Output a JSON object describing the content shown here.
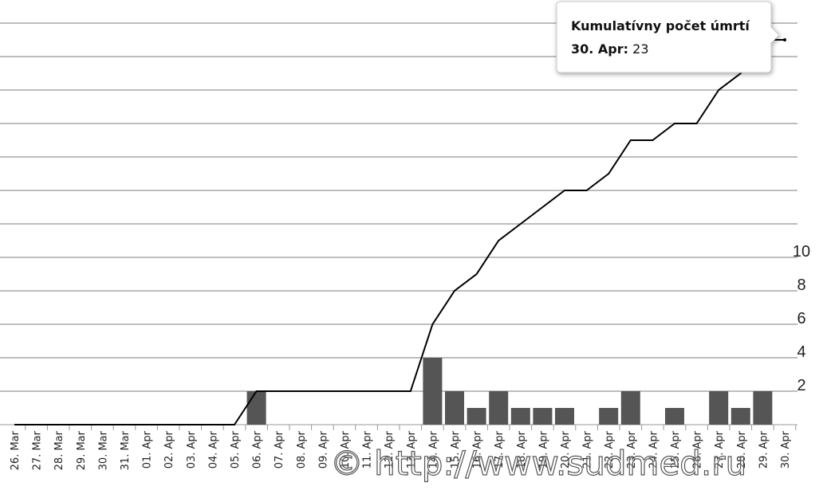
{
  "chart_data": {
    "type": "bar_line",
    "categories": [
      "26. Mar",
      "27. Mar",
      "28. Mar",
      "29. Mar",
      "30. Mar",
      "31. Mar",
      "01. Apr",
      "02. Apr",
      "03. Apr",
      "04. Apr",
      "05. Apr",
      "06. Apr",
      "07. Apr",
      "08. Apr",
      "09. Apr",
      "10. Apr",
      "11. Apr",
      "12. Apr",
      "13. Apr",
      "14. Apr",
      "15. Apr",
      "16. Apr",
      "17. Apr",
      "18. Apr",
      "19. Apr",
      "20. Apr",
      "21. Apr",
      "22. Apr",
      "23. Apr",
      "24. Apr",
      "25. Apr",
      "26. Apr",
      "27. Apr",
      "28. Apr",
      "29. Apr",
      "30. Apr"
    ],
    "series": [
      {
        "type": "bar",
        "color": "#555555",
        "values": [
          0,
          0,
          0,
          0,
          0,
          0,
          0,
          0,
          0,
          0,
          0,
          2,
          0,
          0,
          0,
          0,
          0,
          0,
          0,
          4,
          2,
          1,
          2,
          1,
          1,
          1,
          0,
          1,
          2,
          0,
          1,
          0,
          2,
          1,
          2,
          0
        ]
      },
      {
        "type": "line",
        "name": "Kumulatívny počet úmrtí",
        "color": "#000000",
        "values": [
          0,
          0,
          0,
          0,
          0,
          0,
          0,
          0,
          0,
          0,
          0,
          2,
          2,
          2,
          2,
          2,
          2,
          2,
          2,
          6,
          8,
          9,
          11,
          12,
          13,
          14,
          14,
          15,
          17,
          17,
          18,
          18,
          20,
          21,
          23,
          23
        ]
      }
    ],
    "ylim": [
      0,
      25
    ],
    "yticks": [
      2,
      4,
      6,
      8,
      10
    ],
    "grid": true,
    "tooltip": {
      "label": "30. Apr:",
      "series": 1,
      "index": 35
    },
    "watermark": "© http://www.sudmed.ru"
  }
}
